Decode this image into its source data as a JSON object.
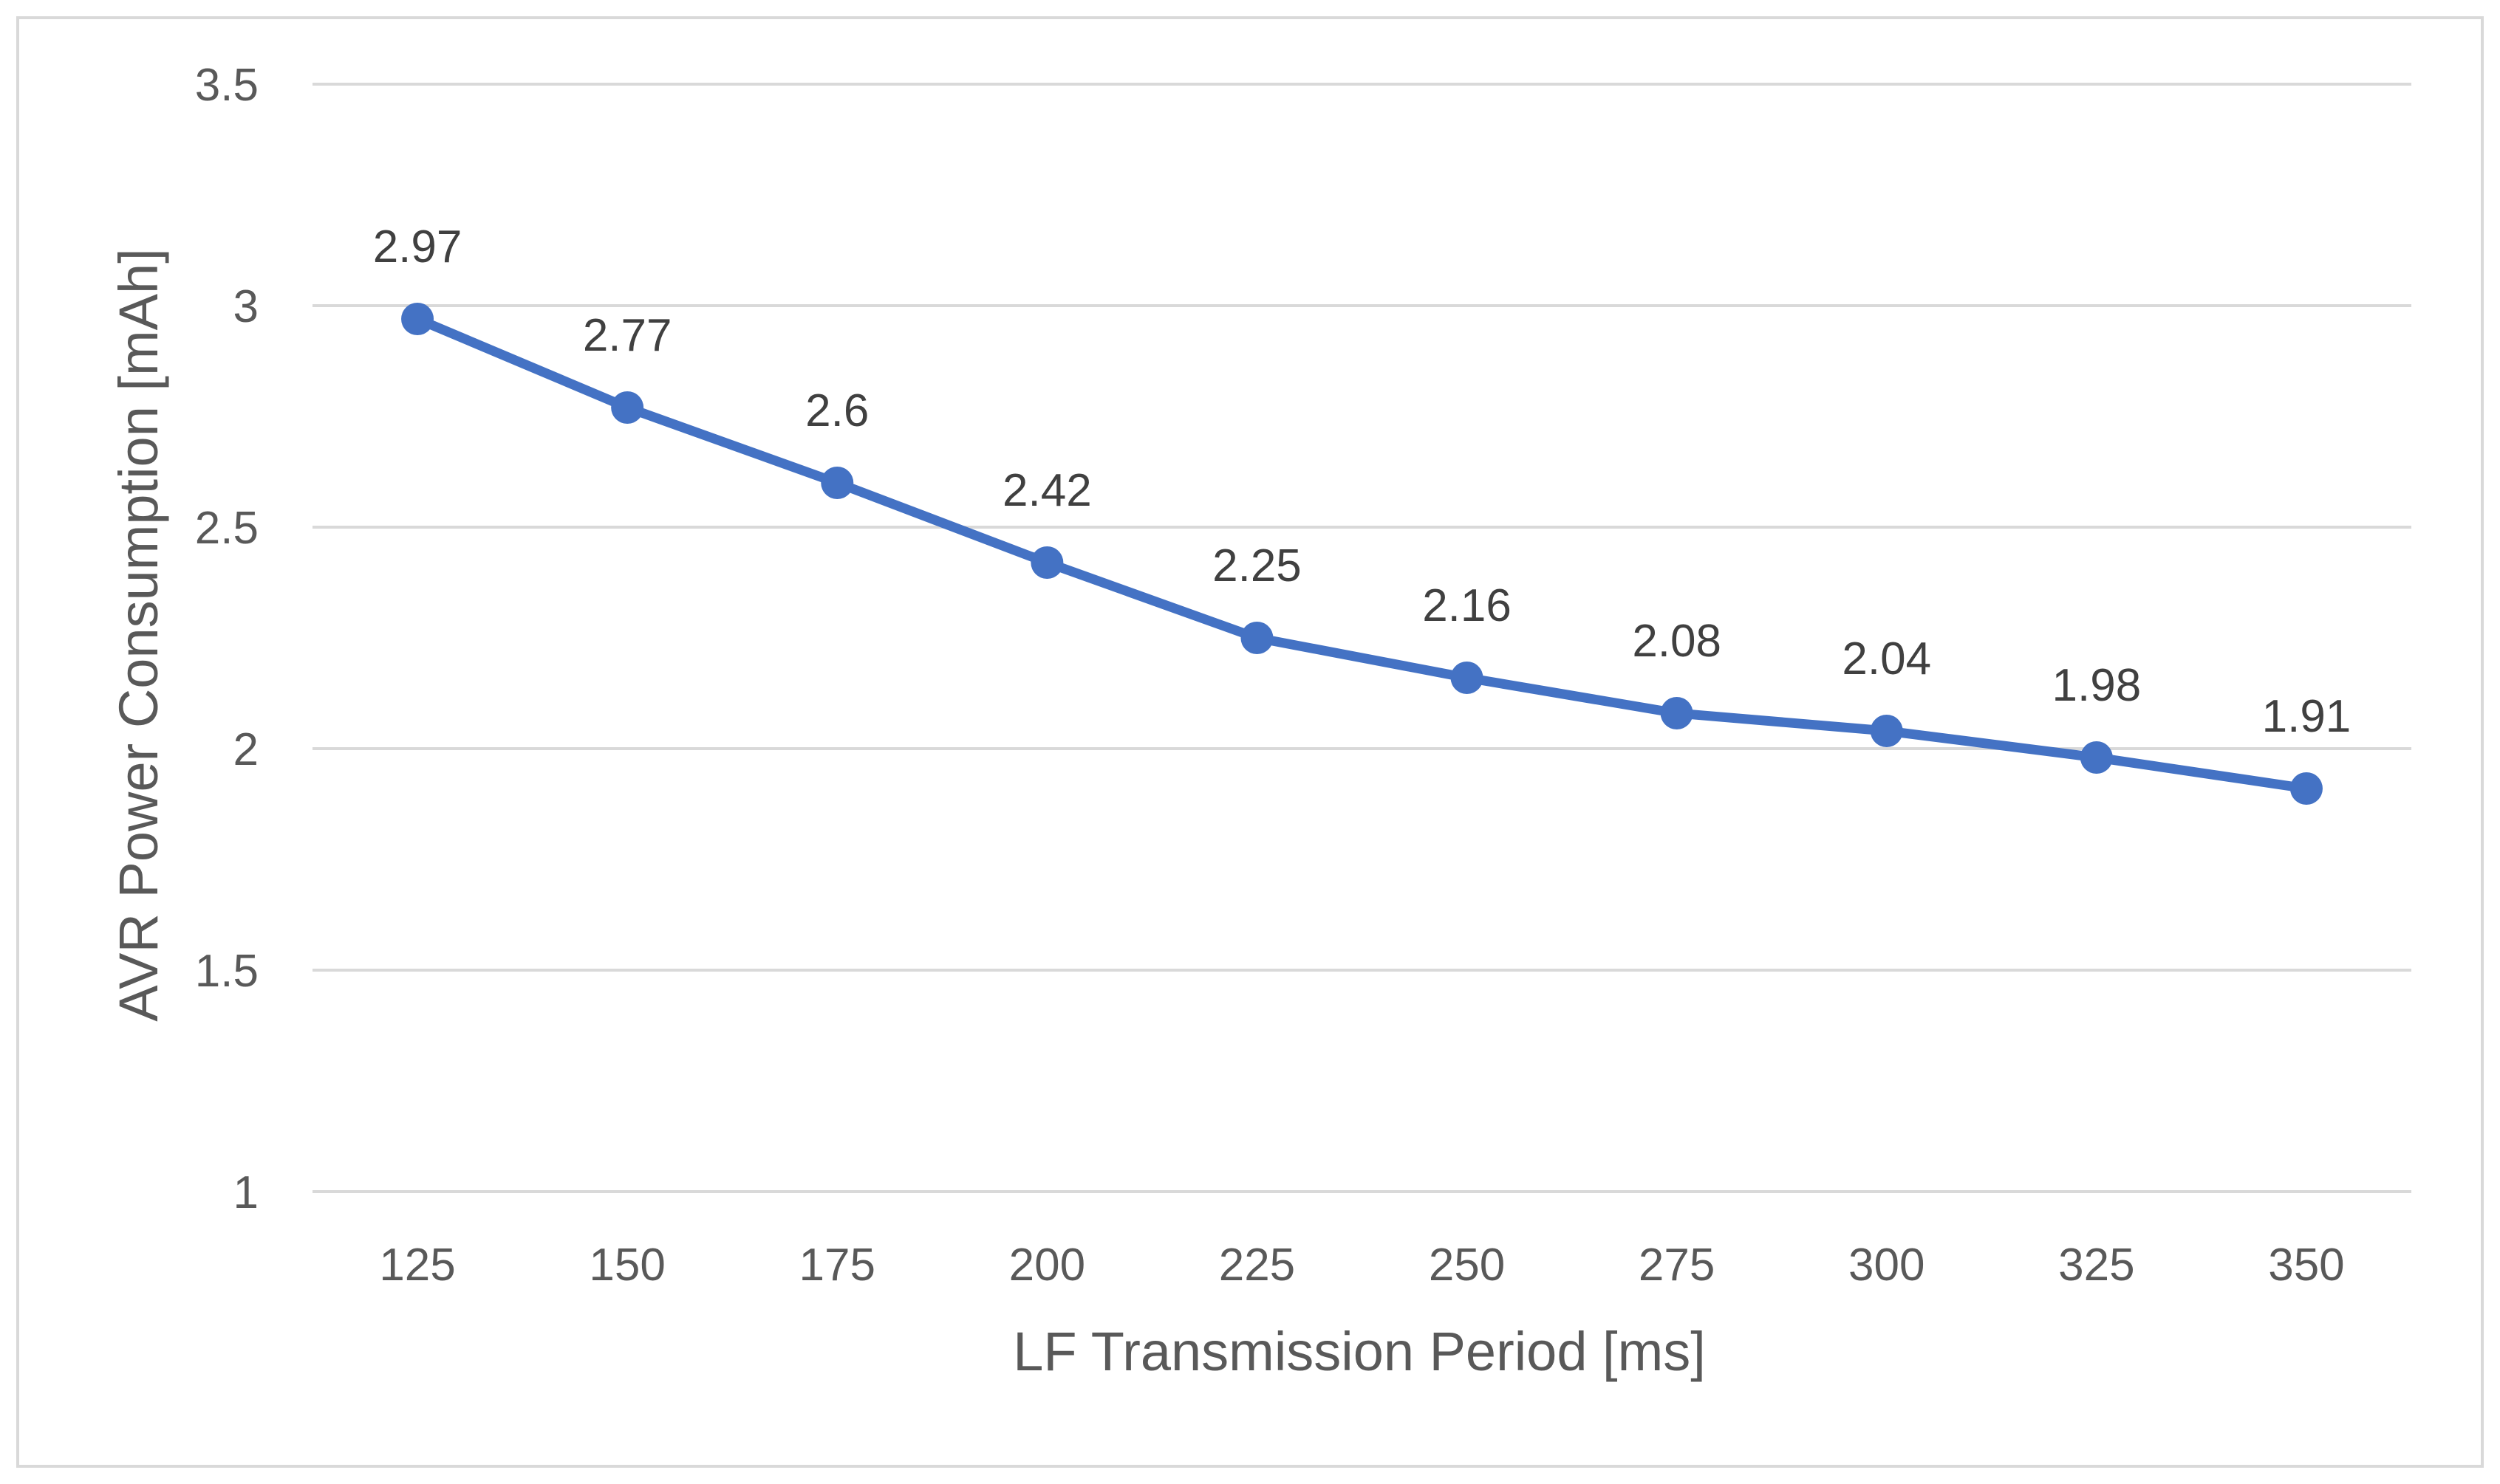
{
  "chart_data": {
    "type": "line",
    "title": "",
    "xlabel": "LF Transmission Period [ms]",
    "ylabel": "AVR Power Consumption [mAh]",
    "categories": [
      "125",
      "150",
      "175",
      "200",
      "225",
      "250",
      "275",
      "300",
      "325",
      "350"
    ],
    "series": [
      {
        "name": "AVR Power Consumption",
        "values": [
          2.97,
          2.77,
          2.6,
          2.42,
          2.25,
          2.16,
          2.08,
          2.04,
          1.98,
          1.91
        ],
        "labels": [
          "2.97",
          "2.77",
          "2.6",
          "2.42",
          "2.25",
          "2.16",
          "2.08",
          "2.04",
          "1.98",
          "1.91"
        ],
        "color": "#4472c4"
      }
    ],
    "ylim": [
      1,
      3.5
    ],
    "yticks": [
      1,
      1.5,
      2,
      2.5,
      3,
      3.5
    ],
    "ytick_labels": [
      "1",
      "1.5",
      "2",
      "2.5",
      "3",
      "3.5"
    ],
    "grid": true,
    "gridline_color": "#d9d9d9",
    "legend": "none"
  }
}
